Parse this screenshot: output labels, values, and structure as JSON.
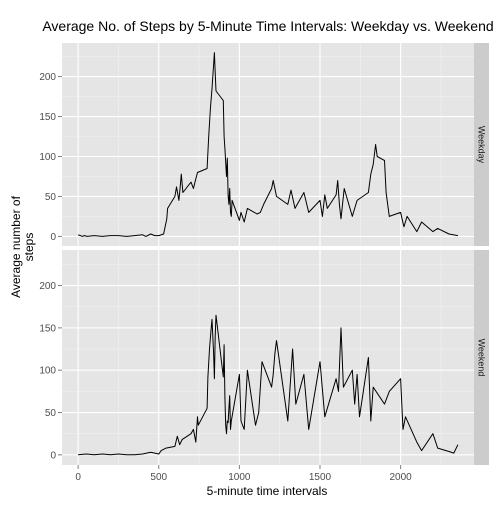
{
  "chart_data": {
    "type": "line",
    "title": "Average No. of Steps by 5-Minute Time Intervals: Weekday vs. Weekend",
    "xlabel": "5-minute time intervals",
    "ylabel_lines": [
      "Average number of",
      "steps"
    ],
    "xlim": [
      -100,
      2455
    ],
    "ylim": [
      -12,
      242
    ],
    "x_ticks": [
      0,
      500,
      1000,
      1500,
      2000
    ],
    "y_ticks": [
      0,
      50,
      100,
      150,
      200
    ],
    "grid": true,
    "facet": "rows",
    "panels": [
      {
        "strip_label": "Weekday",
        "x": [
          0,
          15,
          25,
          40,
          55,
          100,
          150,
          200,
          250,
          300,
          350,
          400,
          420,
          450,
          475,
          500,
          530,
          550,
          555,
          600,
          610,
          625,
          630,
          640,
          650,
          700,
          715,
          730,
          740,
          800,
          810,
          820,
          830,
          835,
          840,
          845,
          850,
          855,
          900,
          905,
          910,
          920,
          925,
          930,
          935,
          940,
          945,
          950,
          955,
          1000,
          1010,
          1030,
          1050,
          1110,
          1130,
          1150,
          1200,
          1210,
          1230,
          1300,
          1320,
          1345,
          1400,
          1430,
          1500,
          1515,
          1530,
          1545,
          1600,
          1610,
          1620,
          1630,
          1650,
          1700,
          1730,
          1800,
          1815,
          1830,
          1845,
          1855,
          1900,
          1910,
          1930,
          2000,
          2020,
          2040,
          2100,
          2130,
          2200,
          2230,
          2300,
          2355
        ],
        "values": [
          2,
          1,
          0,
          1,
          0,
          1,
          0,
          1,
          1,
          0,
          1,
          2,
          0,
          3,
          1,
          1,
          3,
          22,
          35,
          50,
          62,
          45,
          55,
          78,
          55,
          68,
          60,
          72,
          80,
          85,
          125,
          160,
          185,
          200,
          215,
          230,
          205,
          182,
          170,
          125,
          110,
          75,
          98,
          52,
          40,
          60,
          30,
          25,
          45,
          20,
          30,
          18,
          35,
          28,
          30,
          40,
          60,
          70,
          50,
          40,
          58,
          35,
          55,
          30,
          45,
          25,
          52,
          35,
          52,
          70,
          40,
          22,
          60,
          25,
          45,
          55,
          78,
          90,
          115,
          100,
          95,
          55,
          25,
          30,
          12,
          25,
          6,
          18,
          6,
          10,
          3,
          1
        ]
      },
      {
        "strip_label": "Weekend",
        "x": [
          0,
          50,
          100,
          150,
          200,
          250,
          300,
          350,
          400,
          450,
          500,
          515,
          545,
          600,
          615,
          630,
          645,
          700,
          715,
          730,
          740,
          745,
          800,
          805,
          815,
          825,
          830,
          835,
          840,
          845,
          850,
          855,
          900,
          905,
          910,
          915,
          920,
          925,
          930,
          935,
          940,
          945,
          950,
          1000,
          1010,
          1030,
          1050,
          1100,
          1120,
          1140,
          1200,
          1210,
          1220,
          1230,
          1300,
          1330,
          1350,
          1400,
          1430,
          1500,
          1530,
          1600,
          1615,
          1630,
          1645,
          1700,
          1715,
          1730,
          1745,
          1800,
          1815,
          1830,
          1900,
          1930,
          2000,
          2015,
          2030,
          2100,
          2130,
          2200,
          2230,
          2300,
          2330,
          2355
        ],
        "values": [
          0,
          1,
          0,
          1,
          0,
          1,
          0,
          0,
          1,
          3,
          1,
          5,
          8,
          10,
          22,
          12,
          18,
          25,
          30,
          15,
          45,
          35,
          55,
          92,
          125,
          150,
          160,
          140,
          120,
          90,
          140,
          165,
          92,
          130,
          68,
          35,
          25,
          40,
          38,
          55,
          70,
          30,
          40,
          95,
          40,
          30,
          100,
          35,
          50,
          110,
          80,
          95,
          120,
          135,
          40,
          125,
          60,
          95,
          30,
          110,
          45,
          90,
          75,
          150,
          80,
          100,
          60,
          95,
          45,
          115,
          40,
          80,
          60,
          75,
          90,
          30,
          45,
          15,
          5,
          25,
          8,
          4,
          2,
          12
        ]
      }
    ]
  }
}
